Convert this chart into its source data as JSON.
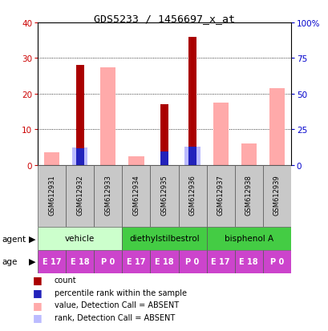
{
  "title": "GDS5233 / 1456697_x_at",
  "samples": [
    "GSM612931",
    "GSM612932",
    "GSM612933",
    "GSM612934",
    "GSM612935",
    "GSM612936",
    "GSM612937",
    "GSM612938",
    "GSM612939"
  ],
  "count_values": [
    0,
    28,
    0,
    0,
    17,
    36,
    0,
    0,
    0
  ],
  "percentile_rank_values": [
    0,
    12,
    0,
    0,
    9.5,
    13,
    0,
    0,
    0
  ],
  "absent_value_values": [
    3.5,
    0,
    27.5,
    2.5,
    0,
    0,
    17.5,
    6,
    21.5
  ],
  "absent_rank_values": [
    1.5,
    12.5,
    12.5,
    2,
    0,
    13,
    9,
    5,
    13
  ],
  "left_ylim": [
    0,
    40
  ],
  "right_ylim": [
    0,
    100
  ],
  "left_yticks": [
    0,
    10,
    20,
    30,
    40
  ],
  "right_yticks": [
    0,
    25,
    50,
    75,
    100
  ],
  "right_yticklabels": [
    "0",
    "25",
    "50",
    "75",
    "100%"
  ],
  "count_color": "#aa0000",
  "rank_color": "#2222bb",
  "absent_value_color": "#ffaaaa",
  "absent_rank_color": "#bbbbff",
  "axis_left_color": "#cc0000",
  "axis_right_color": "#0000cc",
  "agent_configs": [
    {
      "label": "vehicle",
      "start": 0,
      "end": 3,
      "color": "#ccffcc"
    },
    {
      "label": "diethylstilbestrol",
      "start": 3,
      "end": 6,
      "color": "#44cc44"
    },
    {
      "label": "bisphenol A",
      "start": 6,
      "end": 9,
      "color": "#44cc44"
    }
  ],
  "age_labels": [
    "E 17",
    "E 18",
    "P 0",
    "E 17",
    "E 18",
    "P 0",
    "E 17",
    "E 18",
    "P 0"
  ],
  "age_color": "#cc44cc",
  "legend_items": [
    {
      "label": "count",
      "color": "#aa0000"
    },
    {
      "label": "percentile rank within the sample",
      "color": "#2222bb"
    },
    {
      "label": "value, Detection Call = ABSENT",
      "color": "#ffaaaa"
    },
    {
      "label": "rank, Detection Call = ABSENT",
      "color": "#bbbbff"
    }
  ]
}
